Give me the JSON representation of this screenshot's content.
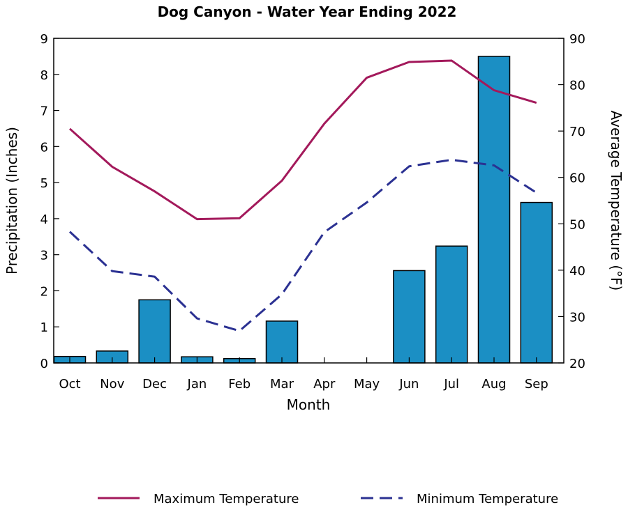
{
  "chart_data": {
    "type": "bar",
    "title": "Dog Canyon - Water Year Ending 2022",
    "xlabel": "Month",
    "ylabel": "Precipitation (Inches)",
    "y2label": "Average Temperature (°F)",
    "categories": [
      "Oct",
      "Nov",
      "Dec",
      "Jan",
      "Feb",
      "Mar",
      "Apr",
      "May",
      "Jun",
      "Jul",
      "Aug",
      "Sep"
    ],
    "ylim": [
      0,
      9
    ],
    "yticks": [
      0,
      1,
      2,
      3,
      4,
      5,
      6,
      7,
      8,
      9
    ],
    "y2lim": [
      20,
      90
    ],
    "y2ticks": [
      20,
      30,
      40,
      50,
      60,
      70,
      80,
      90
    ],
    "grid": false,
    "legend_placement": "bottom",
    "precipitation": {
      "values": [
        0.18,
        0.33,
        1.75,
        0.17,
        0.12,
        1.16,
        0,
        0,
        2.56,
        3.24,
        8.5,
        4.45
      ],
      "color": "#1b8fc4"
    },
    "series": [
      {
        "name": "Maximum Temperature",
        "type": "line",
        "axis": "right",
        "style": "solid",
        "color": "#a3195b",
        "values": [
          70.5,
          62.3,
          57.0,
          51.0,
          51.2,
          59.3,
          71.6,
          81.5,
          84.9,
          85.2,
          78.8,
          76.1
        ]
      },
      {
        "name": "Minimum Temperature",
        "type": "line",
        "axis": "right",
        "style": "dashed",
        "color": "#2b3192",
        "values": [
          48.3,
          39.8,
          38.6,
          29.6,
          26.9,
          34.8,
          48.2,
          54.6,
          62.4,
          63.8,
          62.6,
          56.7
        ]
      }
    ]
  }
}
